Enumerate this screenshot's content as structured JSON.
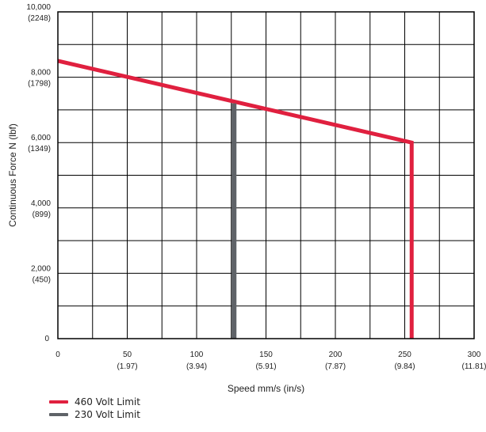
{
  "chart_data": {
    "type": "line",
    "title": "",
    "xlabel": "Speed mm/s (in/s)",
    "ylabel": "Continuous Force N (lbf)",
    "xlim": [
      0,
      300
    ],
    "ylim": [
      0,
      10000
    ],
    "grid": true,
    "x_ticks": [
      {
        "value": 0,
        "label": "0",
        "sub": ""
      },
      {
        "value": 50,
        "label": "50",
        "sub": "(1.97)"
      },
      {
        "value": 100,
        "label": "100",
        "sub": "(3.94)"
      },
      {
        "value": 150,
        "label": "150",
        "sub": "(5.91)"
      },
      {
        "value": 200,
        "label": "200",
        "sub": "(7.87)"
      },
      {
        "value": 250,
        "label": "250",
        "sub": "(9.84)"
      },
      {
        "value": 300,
        "label": "300",
        "sub": "(11.81)"
      }
    ],
    "y_ticks": [
      {
        "value": 0,
        "label": "0",
        "sub": ""
      },
      {
        "value": 2000,
        "label": "2,000",
        "sub": "(450)"
      },
      {
        "value": 4000,
        "label": "4,000",
        "sub": "(899)"
      },
      {
        "value": 6000,
        "label": "6,000",
        "sub": "(1349)"
      },
      {
        "value": 8000,
        "label": "8,000",
        "sub": "(1798)"
      },
      {
        "value": 10000,
        "label": "10,000",
        "sub": "(2248)"
      }
    ],
    "series": [
      {
        "name": "460 Volt Limit",
        "color": "#e0203f",
        "x": [
          0,
          255,
          255
        ],
        "y": [
          8500,
          6000,
          0
        ]
      },
      {
        "name": "230 Volt Limit",
        "color": "#5f6368",
        "x": [
          127,
          127
        ],
        "y": [
          7200,
          0
        ]
      }
    ],
    "legend_position": "bottom-left"
  }
}
